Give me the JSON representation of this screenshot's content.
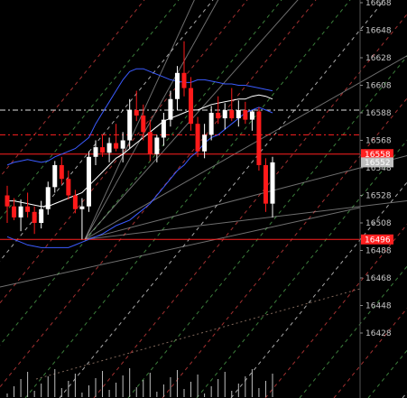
{
  "chart_data": {
    "type": "candlestick",
    "yaxis": {
      "range": [
        16420,
        16670
      ],
      "ticks": [
        16668,
        16648,
        16628,
        16608,
        16588,
        16568,
        16548,
        16528,
        16508,
        16488,
        16468,
        16448,
        16428
      ]
    },
    "price_markers": [
      {
        "label": "16558",
        "value": 16558,
        "color": "#ff2020"
      },
      {
        "label": "16552",
        "value": 16552,
        "color": "#c0c0c0"
      },
      {
        "label": "16496",
        "value": 16496,
        "color": "#ff2020"
      }
    ],
    "horizontal_lines": [
      {
        "value": 16590,
        "color": "#e0e0e0",
        "style": "dash-dot"
      },
      {
        "value": 16572,
        "color": "#ff2020",
        "style": "dash-dot"
      },
      {
        "value": 16558,
        "color": "#ff2020",
        "style": "solid"
      },
      {
        "value": 16496,
        "color": "#ff2020",
        "style": "solid"
      }
    ],
    "candles": [
      {
        "open": 16528,
        "high": 16535,
        "low": 16508,
        "close": 16520
      },
      {
        "open": 16520,
        "high": 16526,
        "low": 16510,
        "close": 16512
      },
      {
        "open": 16512,
        "high": 16525,
        "low": 16502,
        "close": 16520
      },
      {
        "open": 16520,
        "high": 16530,
        "low": 16512,
        "close": 16516
      },
      {
        "open": 16516,
        "high": 16520,
        "low": 16500,
        "close": 16508
      },
      {
        "open": 16508,
        "high": 16524,
        "low": 16504,
        "close": 16518
      },
      {
        "open": 16518,
        "high": 16538,
        "low": 16514,
        "close": 16534
      },
      {
        "open": 16534,
        "high": 16553,
        "low": 16530,
        "close": 16550
      },
      {
        "open": 16550,
        "high": 16556,
        "low": 16536,
        "close": 16540
      },
      {
        "open": 16540,
        "high": 16546,
        "low": 16525,
        "close": 16528
      },
      {
        "open": 16528,
        "high": 16532,
        "low": 16515,
        "close": 16518
      },
      {
        "open": 16518,
        "high": 16526,
        "low": 16496,
        "close": 16520
      },
      {
        "open": 16520,
        "high": 16560,
        "low": 16516,
        "close": 16556
      },
      {
        "open": 16556,
        "high": 16568,
        "low": 16550,
        "close": 16563
      },
      {
        "open": 16563,
        "high": 16572,
        "low": 16556,
        "close": 16559
      },
      {
        "open": 16559,
        "high": 16570,
        "low": 16552,
        "close": 16566
      },
      {
        "open": 16566,
        "high": 16580,
        "low": 16560,
        "close": 16562
      },
      {
        "open": 16562,
        "high": 16574,
        "low": 16552,
        "close": 16568
      },
      {
        "open": 16568,
        "high": 16598,
        "low": 16562,
        "close": 16590
      },
      {
        "open": 16590,
        "high": 16604,
        "low": 16582,
        "close": 16586
      },
      {
        "open": 16586,
        "high": 16594,
        "low": 16568,
        "close": 16574
      },
      {
        "open": 16574,
        "high": 16583,
        "low": 16553,
        "close": 16558
      },
      {
        "open": 16558,
        "high": 16572,
        "low": 16552,
        "close": 16570
      },
      {
        "open": 16570,
        "high": 16588,
        "low": 16564,
        "close": 16583
      },
      {
        "open": 16583,
        "high": 16604,
        "low": 16578,
        "close": 16598
      },
      {
        "open": 16598,
        "high": 16622,
        "low": 16590,
        "close": 16617
      },
      {
        "open": 16617,
        "high": 16640,
        "low": 16600,
        "close": 16606
      },
      {
        "open": 16606,
        "high": 16614,
        "low": 16575,
        "close": 16580
      },
      {
        "open": 16580,
        "high": 16585,
        "low": 16556,
        "close": 16560
      },
      {
        "open": 16560,
        "high": 16580,
        "low": 16555,
        "close": 16572
      },
      {
        "open": 16572,
        "high": 16593,
        "low": 16568,
        "close": 16588
      },
      {
        "open": 16588,
        "high": 16600,
        "low": 16580,
        "close": 16584
      },
      {
        "open": 16584,
        "high": 16595,
        "low": 16576,
        "close": 16590
      },
      {
        "open": 16590,
        "high": 16606,
        "low": 16582,
        "close": 16584
      },
      {
        "open": 16584,
        "high": 16597,
        "low": 16578,
        "close": 16590
      },
      {
        "open": 16590,
        "high": 16596,
        "low": 16580,
        "close": 16583
      },
      {
        "open": 16583,
        "high": 16590,
        "low": 16575,
        "close": 16589
      },
      {
        "open": 16589,
        "high": 16592,
        "low": 16546,
        "close": 16550
      },
      {
        "open": 16550,
        "high": 16555,
        "low": 16516,
        "close": 16522
      },
      {
        "open": 16522,
        "high": 16556,
        "low": 16512,
        "close": 16552
      }
    ],
    "bollinger_upper": [
      16550,
      16552,
      16553,
      16554,
      16553,
      16552,
      16553,
      16556,
      16558,
      16560,
      16562,
      16566,
      16570,
      16580,
      16588,
      16596,
      16604,
      16612,
      16618,
      16620,
      16620,
      16618,
      16616,
      16614,
      16612,
      16611,
      16610,
      16610,
      16612,
      16612,
      16611,
      16610,
      16609,
      16609,
      16608,
      16608,
      16607,
      16606,
      16605,
      16604
    ],
    "bollinger_mid": [
      16524,
      16524,
      16523,
      16522,
      16521,
      16520,
      16520,
      16522,
      16524,
      16526,
      16528,
      16530,
      16535,
      16540,
      16545,
      16550,
      16555,
      16558,
      16562,
      16566,
      16570,
      16574,
      16578,
      16582,
      16584,
      16586,
      16588,
      16590,
      16590,
      16592,
      16594,
      16595,
      16596,
      16597,
      16598,
      16598,
      16600,
      16601,
      16600,
      16598
    ],
    "bollinger_lower": [
      16498,
      16496,
      16494,
      16492,
      16491,
      16490,
      16490,
      16490,
      16490,
      16490,
      16492,
      16494,
      16496,
      16498,
      16500,
      16503,
      16506,
      16508,
      16510,
      16514,
      16518,
      16522,
      16528,
      16534,
      16540,
      16546,
      16550,
      16556,
      16560,
      16566,
      16570,
      16572,
      16576,
      16580,
      16584,
      16588,
      16590,
      16592,
      16590,
      16588
    ],
    "volume": [
      0,
      0,
      0,
      0,
      0,
      0,
      0,
      0,
      0,
      0,
      0,
      0,
      0,
      0,
      0,
      0,
      0,
      0,
      0,
      0,
      0,
      0,
      0,
      0,
      0,
      0,
      0,
      0,
      0,
      0,
      0,
      0,
      0,
      0,
      0,
      0,
      0,
      0,
      0,
      0
    ],
    "grid": false,
    "colors": {
      "background": "#000000",
      "bull_candle": "#ffffff",
      "bear_candle": "#ff1a1a",
      "axis_text": "#c8c8c8",
      "bollinger": "#ffffff",
      "moving_average": "#3b5bff"
    }
  }
}
